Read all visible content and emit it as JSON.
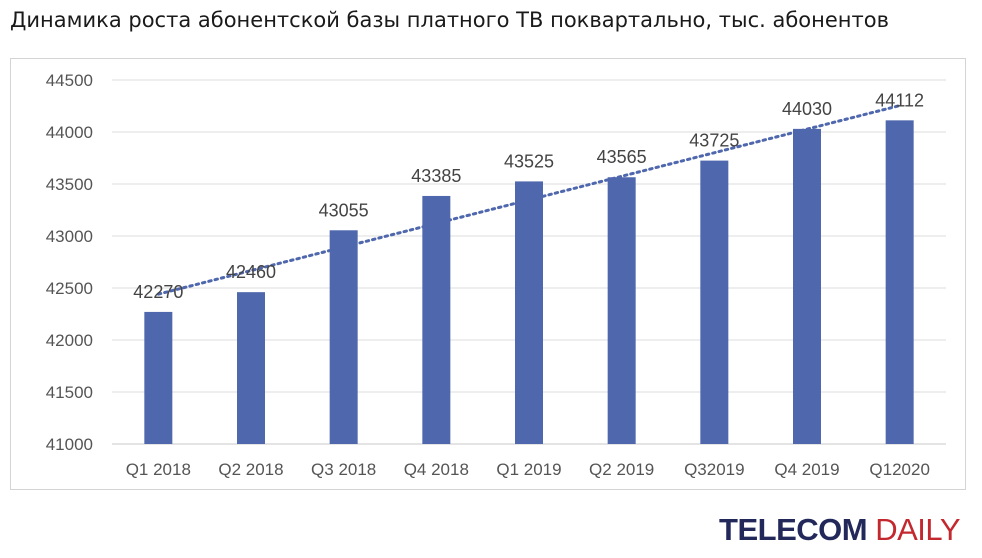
{
  "title": "Динамика роста абонентской базы платного ТВ поквартально, тыс. абонентов",
  "logo": {
    "part1": "TELECOM",
    "part2": "DAILY",
    "color1": "#23285b",
    "color2": "#c3282e"
  },
  "chart_data": {
    "type": "bar",
    "categories": [
      "Q1 2018",
      "Q2 2018",
      "Q3 2018",
      "Q4 2018",
      "Q1 2019",
      "Q2 2019",
      "Q32019",
      "Q4 2019",
      "Q12020"
    ],
    "values": [
      42270,
      42460,
      43055,
      43385,
      43525,
      43565,
      43725,
      44030,
      44112
    ],
    "data_labels": [
      "42270",
      "42460",
      "43055",
      "43385",
      "43525",
      "43565",
      "43725",
      "44030",
      "44112"
    ],
    "ylim": [
      41000,
      44500
    ],
    "yticks": [
      "41000",
      "41500",
      "42000",
      "42500",
      "43000",
      "43500",
      "44000",
      "44500"
    ],
    "bar_color": "#4f67ad",
    "trendline": {
      "style": "dotted",
      "type": "linear",
      "color": "#4f67ad"
    },
    "grid": true,
    "legend": "none"
  }
}
